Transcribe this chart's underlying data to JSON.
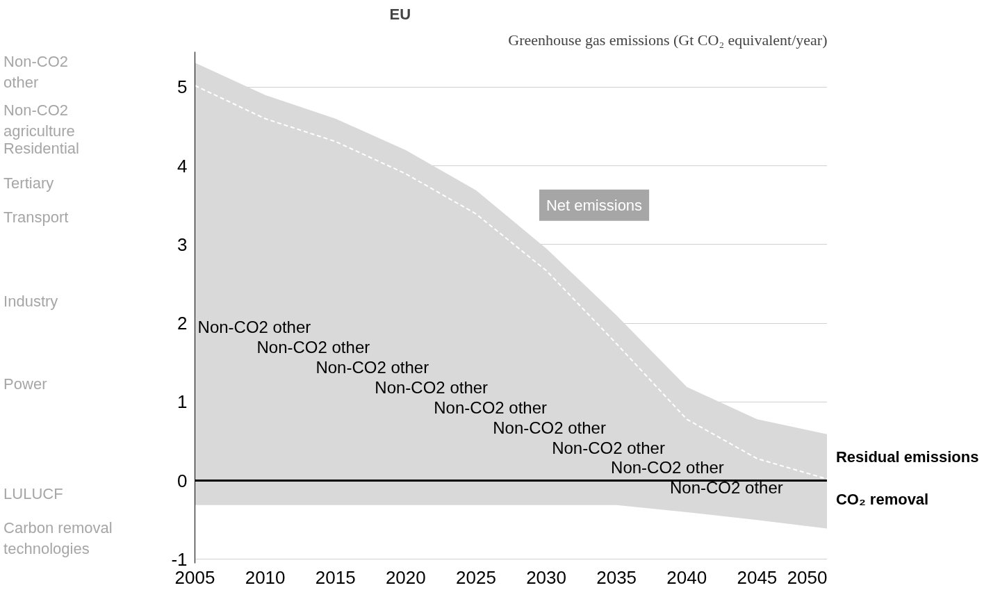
{
  "chart_data": {
    "type": "area",
    "title": "EU",
    "subtitle": "Greenhouse gas emissions (Gt CO₂ equivalent/year)",
    "x": [
      2005,
      2010,
      2015,
      2020,
      2025,
      2030,
      2035,
      2040,
      2045,
      2050
    ],
    "series": [
      {
        "color": "#d9d9d9",
        "values": [
          5.31,
          4.9,
          4.6,
          4.2,
          3.69,
          2.95,
          2.1,
          1.19,
          0.78,
          0.59
        ]
      },
      {
        "color": "#d9d9d9",
        "values": [
          -0.31,
          -0.31,
          -0.31,
          -0.31,
          -0.31,
          -0.31,
          -0.31,
          -0.4,
          -0.5,
          -0.61
        ]
      },
      {
        "type": "line",
        "color": "#ffffff",
        "line_style": "dashed",
        "values": [
          5.02,
          4.6,
          4.31,
          3.9,
          3.39,
          2.67,
          1.74,
          0.78,
          0.28,
          0.02
        ]
      }
    ],
    "xlim": [
      2005,
      2050
    ],
    "ylim": [
      -1.05,
      5.45
    ],
    "xticks": [
      2005,
      2010,
      2015,
      2020,
      2025,
      2030,
      2035,
      2040,
      2045,
      2050
    ],
    "yticks": [
      -1,
      0,
      1,
      2,
      3,
      4,
      5
    ],
    "grid": "y",
    "ref_lines": [
      {
        "axis": "y",
        "value": 0,
        "color": "#000000"
      }
    ],
    "annotations": [
      "Non-CO2 other",
      "Non-CO2 agriculture",
      "Residential",
      "Tertiary",
      "Transport",
      "Industry",
      "Power",
      "LULUCF",
      "Carbon removal technologies",
      "Non-CO2 other",
      "Non-CO2 other",
      "Non-CO2 other",
      "Non-CO2 other",
      "Non-CO2 other",
      "Non-CO2 other",
      "Non-CO2 other",
      "Non-CO2 other",
      "Non-CO2 other",
      "Net emissions",
      "Residual emissions",
      "CO₂ removal"
    ]
  }
}
